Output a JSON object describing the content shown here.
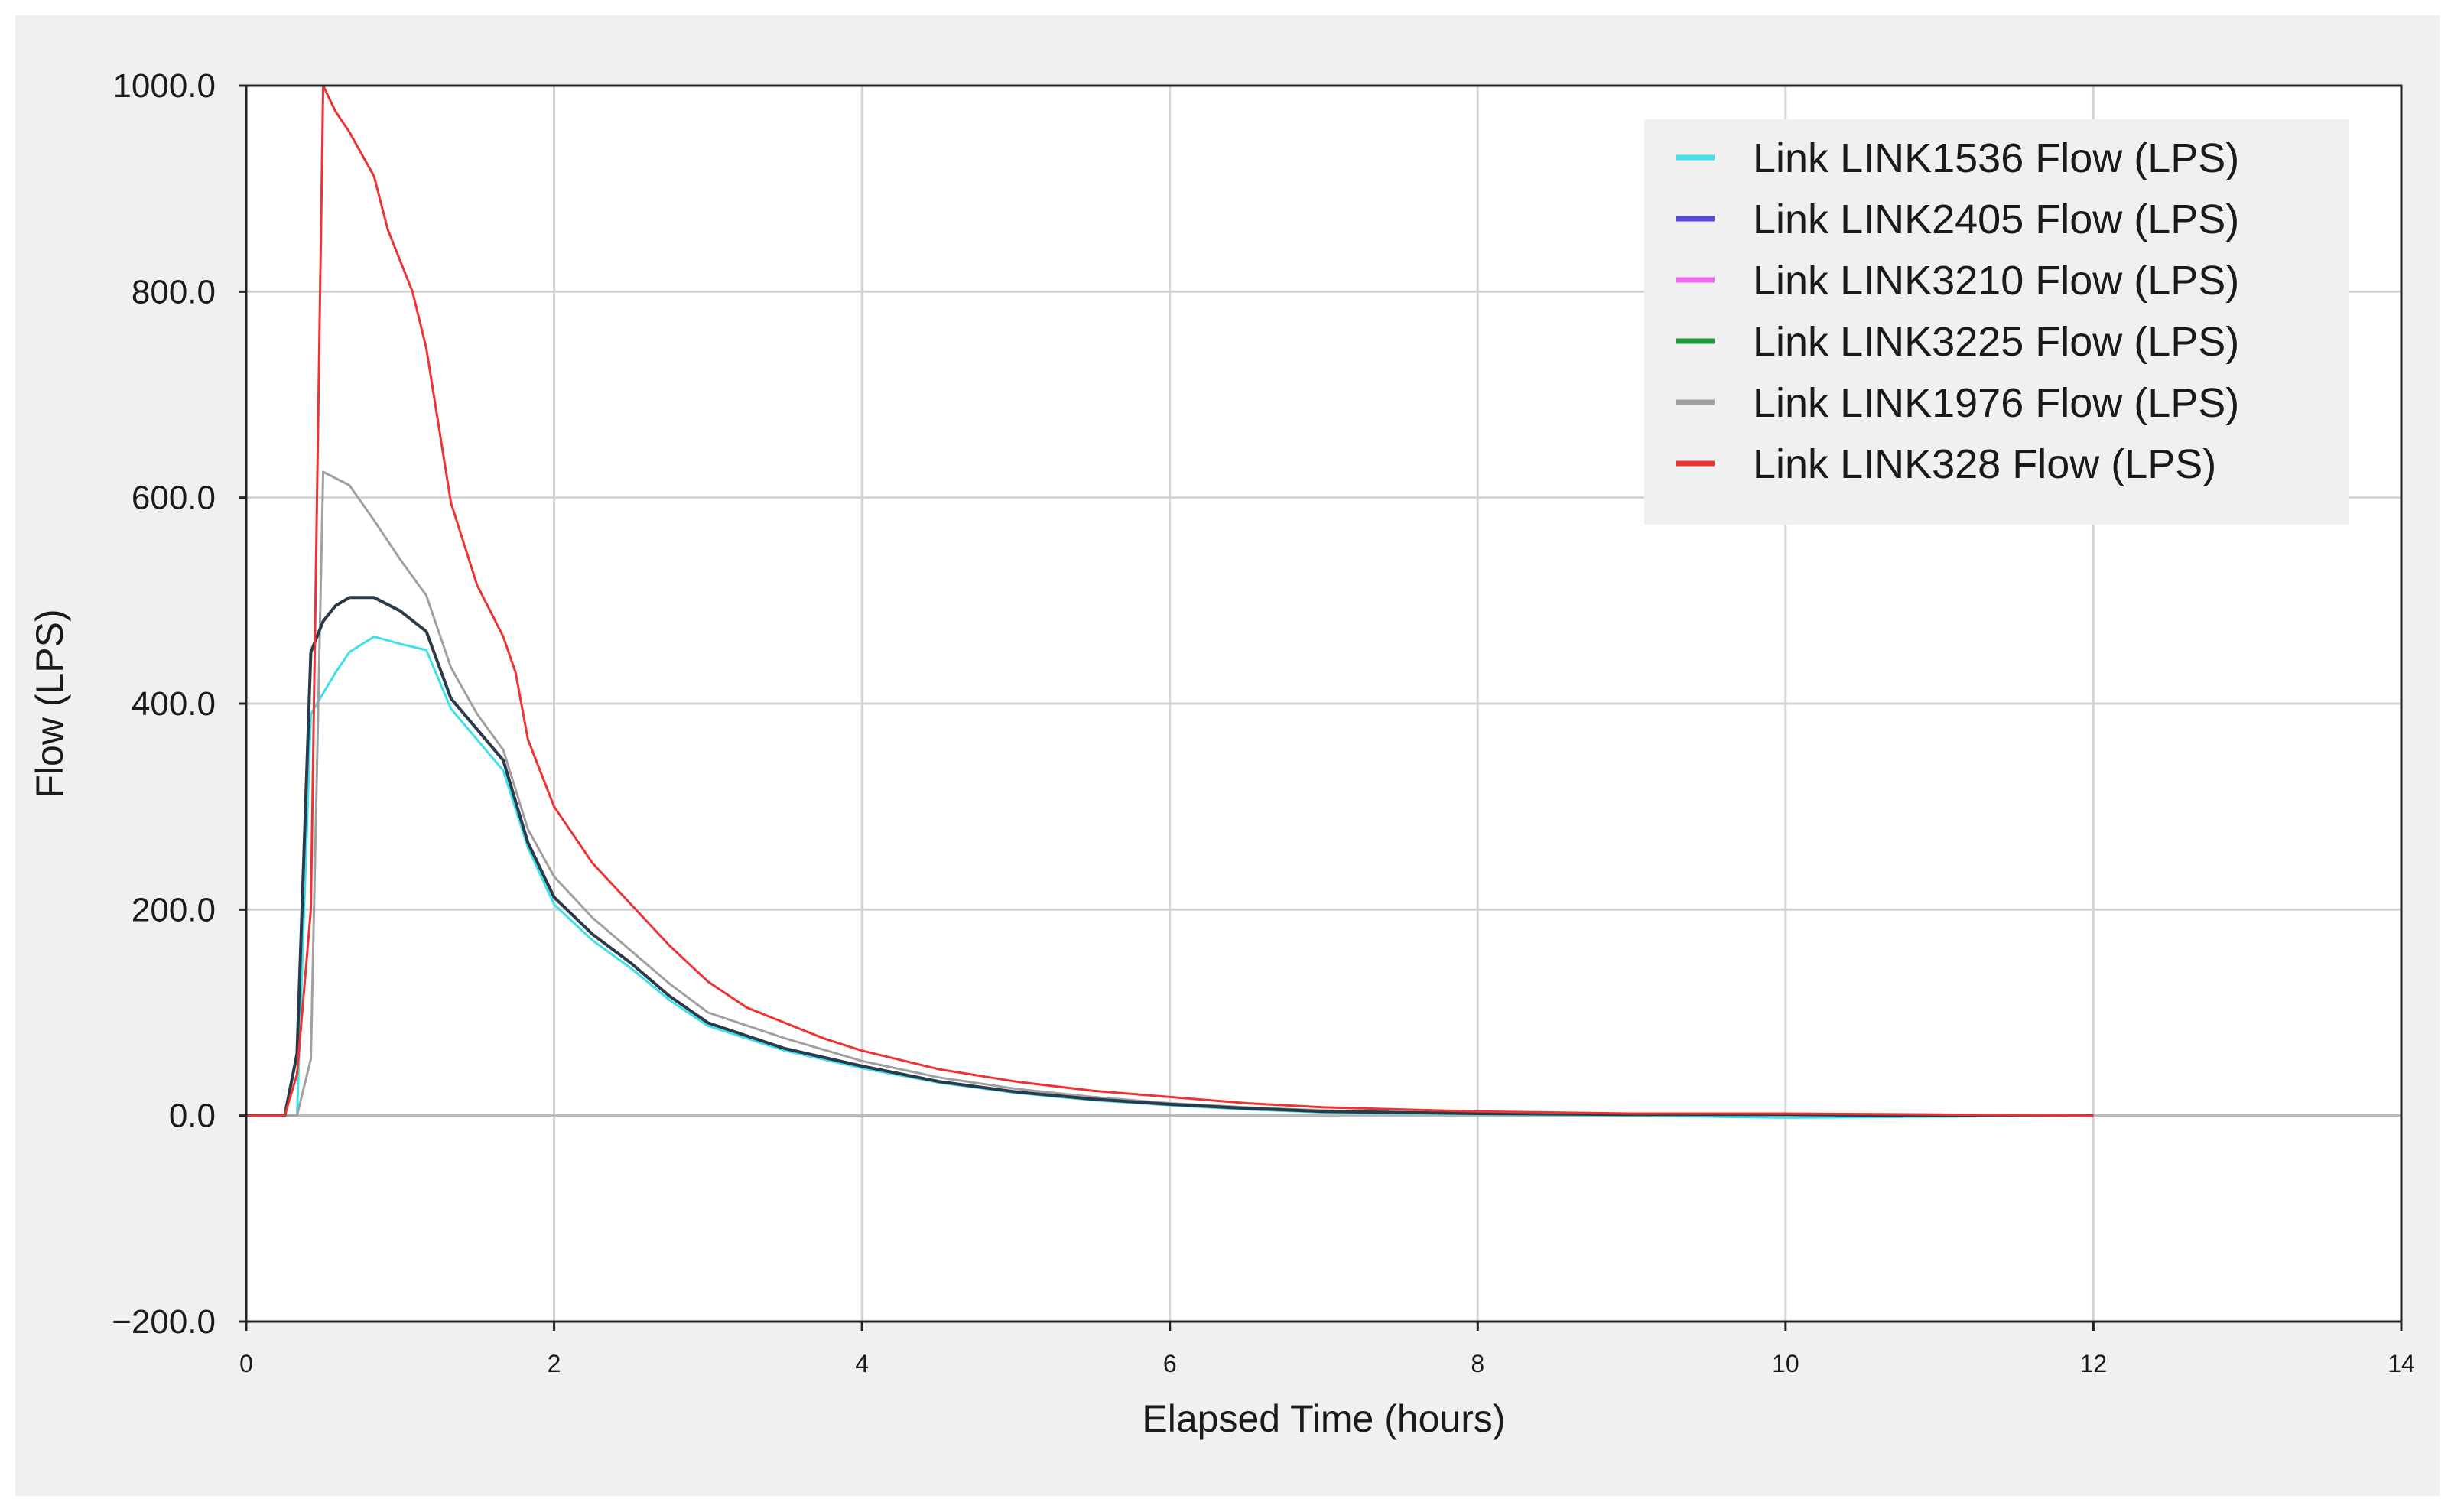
{
  "chart_data": {
    "type": "line",
    "title": "",
    "xlabel": "Elapsed Time (hours)",
    "ylabel": "Flow (LPS)",
    "xlim": [
      0,
      14
    ],
    "ylim": [
      -200,
      1000
    ],
    "x_ticks": [
      0,
      2,
      4,
      6,
      8,
      10,
      12,
      14
    ],
    "x_tick_labels": [
      "0",
      "2",
      "4",
      "6",
      "8",
      "10",
      "12",
      "14"
    ],
    "y_ticks": [
      -200,
      0,
      200,
      400,
      600,
      800,
      1000
    ],
    "y_tick_labels": [
      "−200.0",
      "0.0",
      "200.0",
      "400.0",
      "600.0",
      "800.0",
      "1000.0"
    ],
    "grid": true,
    "legend_position": "top-right",
    "series": [
      {
        "name": "Link LINK1536 Flow (LPS)",
        "color": "#3ee0ea",
        "points": [
          [
            0,
            0
          ],
          [
            0.25,
            0
          ],
          [
            0.33,
            0
          ],
          [
            0.42,
            390
          ],
          [
            0.5,
            410
          ],
          [
            0.58,
            430
          ],
          [
            0.67,
            450
          ],
          [
            0.83,
            465
          ],
          [
            1.0,
            458
          ],
          [
            1.17,
            452
          ],
          [
            1.33,
            395
          ],
          [
            1.5,
            365
          ],
          [
            1.67,
            335
          ],
          [
            1.83,
            260
          ],
          [
            2.0,
            205
          ],
          [
            2.25,
            170
          ],
          [
            2.5,
            143
          ],
          [
            2.75,
            112
          ],
          [
            3.0,
            87
          ],
          [
            3.5,
            63
          ],
          [
            4.0,
            46
          ],
          [
            4.5,
            32
          ],
          [
            5.0,
            22
          ],
          [
            5.5,
            15
          ],
          [
            6.0,
            10
          ],
          [
            6.5,
            6
          ],
          [
            7.0,
            3
          ],
          [
            8.0,
            1
          ],
          [
            9.0,
            0
          ],
          [
            10.0,
            -2
          ],
          [
            11.0,
            -1
          ],
          [
            12.0,
            0
          ]
        ]
      },
      {
        "name": "Link LINK2405 Flow (LPS)",
        "color": "#5448e0",
        "points": [
          [
            0,
            0
          ],
          [
            0.25,
            0
          ],
          [
            0.33,
            60
          ],
          [
            0.42,
            450
          ],
          [
            0.5,
            480
          ],
          [
            0.58,
            495
          ],
          [
            0.67,
            503
          ],
          [
            0.83,
            503
          ],
          [
            1.0,
            490
          ],
          [
            1.17,
            470
          ],
          [
            1.33,
            405
          ],
          [
            1.5,
            375
          ],
          [
            1.67,
            345
          ],
          [
            1.83,
            265
          ],
          [
            2.0,
            212
          ],
          [
            2.25,
            176
          ],
          [
            2.5,
            148
          ],
          [
            2.75,
            116
          ],
          [
            3.0,
            90
          ],
          [
            3.5,
            65
          ],
          [
            4.0,
            48
          ],
          [
            4.5,
            33
          ],
          [
            5.0,
            23
          ],
          [
            5.5,
            16
          ],
          [
            6.0,
            11
          ],
          [
            6.5,
            7
          ],
          [
            7.0,
            4
          ],
          [
            8.0,
            2
          ],
          [
            9.0,
            1
          ],
          [
            10.0,
            1
          ],
          [
            11.0,
            0
          ],
          [
            12.0,
            0
          ]
        ]
      },
      {
        "name": "Link LINK3210 Flow (LPS)",
        "color": "#f066f0",
        "points": [
          [
            0,
            0
          ],
          [
            0.25,
            0
          ],
          [
            0.33,
            60
          ],
          [
            0.42,
            450
          ],
          [
            0.5,
            480
          ],
          [
            0.58,
            495
          ],
          [
            0.67,
            503
          ],
          [
            0.83,
            503
          ],
          [
            1.0,
            490
          ],
          [
            1.17,
            470
          ],
          [
            1.33,
            405
          ],
          [
            1.5,
            375
          ],
          [
            1.67,
            345
          ],
          [
            1.83,
            265
          ],
          [
            2.0,
            212
          ],
          [
            2.25,
            176
          ],
          [
            2.5,
            148
          ],
          [
            2.75,
            116
          ],
          [
            3.0,
            90
          ],
          [
            3.5,
            65
          ],
          [
            4.0,
            48
          ],
          [
            4.5,
            33
          ],
          [
            5.0,
            23
          ],
          [
            5.5,
            16
          ],
          [
            6.0,
            11
          ],
          [
            6.5,
            7
          ],
          [
            7.0,
            4
          ],
          [
            8.0,
            2
          ],
          [
            9.0,
            1
          ],
          [
            10.0,
            1
          ],
          [
            11.0,
            0
          ],
          [
            12.0,
            0
          ]
        ]
      },
      {
        "name": "Link LINK3225 Flow (LPS)",
        "color": "#1e9a3c",
        "points": [
          [
            0,
            0
          ],
          [
            0.25,
            0
          ],
          [
            0.33,
            60
          ],
          [
            0.42,
            450
          ],
          [
            0.5,
            480
          ],
          [
            0.58,
            495
          ],
          [
            0.67,
            503
          ],
          [
            0.83,
            503
          ],
          [
            1.0,
            490
          ],
          [
            1.17,
            470
          ],
          [
            1.33,
            405
          ],
          [
            1.5,
            375
          ],
          [
            1.67,
            345
          ],
          [
            1.83,
            265
          ],
          [
            2.0,
            212
          ],
          [
            2.25,
            176
          ],
          [
            2.5,
            148
          ],
          [
            2.75,
            116
          ],
          [
            3.0,
            90
          ],
          [
            3.5,
            65
          ],
          [
            4.0,
            48
          ],
          [
            4.5,
            33
          ],
          [
            5.0,
            23
          ],
          [
            5.5,
            16
          ],
          [
            6.0,
            11
          ],
          [
            6.5,
            7
          ],
          [
            7.0,
            4
          ],
          [
            8.0,
            2
          ],
          [
            9.0,
            1
          ],
          [
            10.0,
            1
          ],
          [
            11.0,
            0
          ],
          [
            12.0,
            0
          ]
        ]
      },
      {
        "name": "Link LINK1976 Flow (LPS)",
        "color": "#a0a0a0",
        "points": [
          [
            0,
            0
          ],
          [
            0.25,
            0
          ],
          [
            0.33,
            0
          ],
          [
            0.42,
            55
          ],
          [
            0.5,
            625
          ],
          [
            0.67,
            612
          ],
          [
            0.83,
            578
          ],
          [
            1.0,
            540
          ],
          [
            1.17,
            505
          ],
          [
            1.33,
            435
          ],
          [
            1.5,
            390
          ],
          [
            1.67,
            355
          ],
          [
            1.83,
            278
          ],
          [
            2.0,
            232
          ],
          [
            2.25,
            192
          ],
          [
            2.5,
            160
          ],
          [
            2.75,
            128
          ],
          [
            3.0,
            100
          ],
          [
            3.5,
            75
          ],
          [
            4.0,
            53
          ],
          [
            4.5,
            37
          ],
          [
            5.0,
            26
          ],
          [
            5.5,
            18
          ],
          [
            6.0,
            12
          ],
          [
            6.5,
            8
          ],
          [
            7.0,
            5
          ],
          [
            8.0,
            2
          ],
          [
            9.0,
            1
          ],
          [
            10.0,
            1
          ],
          [
            11.0,
            0
          ],
          [
            12.0,
            0
          ]
        ]
      },
      {
        "name": "Link LINK328 Flow (LPS)",
        "color": "#ee3333",
        "points": [
          [
            0,
            0
          ],
          [
            0.25,
            0
          ],
          [
            0.33,
            40
          ],
          [
            0.42,
            200
          ],
          [
            0.5,
            1000
          ],
          [
            0.58,
            975
          ],
          [
            0.67,
            955
          ],
          [
            0.83,
            912
          ],
          [
            0.92,
            860
          ],
          [
            1.0,
            830
          ],
          [
            1.08,
            800
          ],
          [
            1.17,
            745
          ],
          [
            1.33,
            595
          ],
          [
            1.5,
            515
          ],
          [
            1.67,
            465
          ],
          [
            1.75,
            430
          ],
          [
            1.83,
            365
          ],
          [
            2.0,
            300
          ],
          [
            2.25,
            245
          ],
          [
            2.5,
            205
          ],
          [
            2.75,
            165
          ],
          [
            3.0,
            130
          ],
          [
            3.25,
            105
          ],
          [
            3.5,
            90
          ],
          [
            3.75,
            75
          ],
          [
            4.0,
            63
          ],
          [
            4.5,
            45
          ],
          [
            5.0,
            33
          ],
          [
            5.5,
            24
          ],
          [
            6.0,
            18
          ],
          [
            6.5,
            12
          ],
          [
            7.0,
            8
          ],
          [
            7.5,
            6
          ],
          [
            8.0,
            4
          ],
          [
            9.0,
            2
          ],
          [
            10.0,
            2
          ],
          [
            11.0,
            1
          ],
          [
            12.0,
            0
          ]
        ]
      }
    ]
  }
}
